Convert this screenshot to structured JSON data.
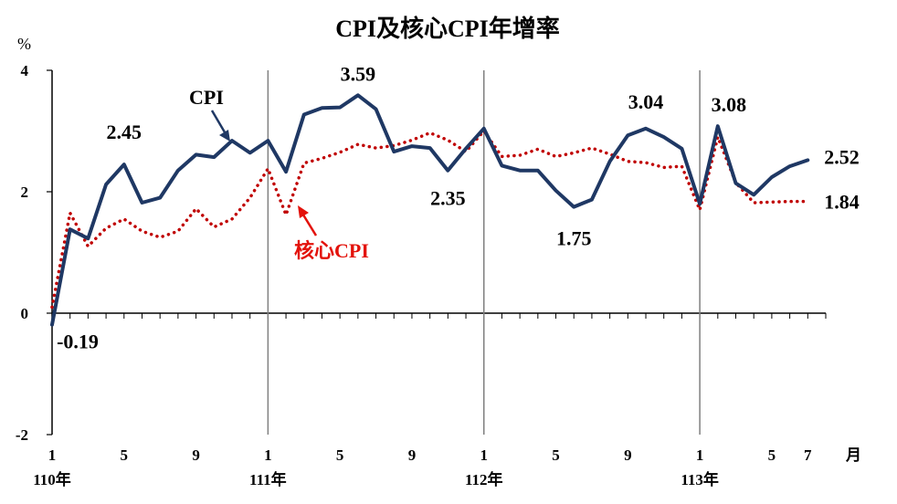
{
  "chart_data": {
    "type": "line",
    "title": "CPI及核心CPI年增率",
    "yunit": "%",
    "xunit": "月",
    "ylim": [
      -2,
      4
    ],
    "yticks": [
      "4",
      "2",
      "0",
      "-2"
    ],
    "month_ticks": [
      {
        "index": 0,
        "label": "1"
      },
      {
        "index": 4,
        "label": "5"
      },
      {
        "index": 8,
        "label": "9"
      },
      {
        "index": 12,
        "label": "1"
      },
      {
        "index": 16,
        "label": "5"
      },
      {
        "index": 20,
        "label": "9"
      },
      {
        "index": 24,
        "label": "1"
      },
      {
        "index": 28,
        "label": "5"
      },
      {
        "index": 32,
        "label": "9"
      },
      {
        "index": 36,
        "label": "1"
      },
      {
        "index": 40,
        "label": "5"
      },
      {
        "index": 42,
        "label": "7"
      }
    ],
    "year_labels": [
      {
        "index": 0,
        "label": "110年"
      },
      {
        "index": 12,
        "label": "111年"
      },
      {
        "index": 24,
        "label": "112年"
      },
      {
        "index": 36,
        "label": "113年"
      }
    ],
    "year_separators": [
      12,
      24,
      36
    ],
    "series": [
      {
        "name": "CPI",
        "color": "#1f3864",
        "style": "solid",
        "values": [
          -0.19,
          1.38,
          1.23,
          2.12,
          2.45,
          1.82,
          1.9,
          2.35,
          2.61,
          2.57,
          2.84,
          2.64,
          2.84,
          2.33,
          3.27,
          3.38,
          3.39,
          3.59,
          3.36,
          2.66,
          2.75,
          2.72,
          2.35,
          2.71,
          3.04,
          2.43,
          2.35,
          2.35,
          2.02,
          1.75,
          1.87,
          2.5,
          2.93,
          3.04,
          2.9,
          2.71,
          1.8,
          3.08,
          2.14,
          1.95,
          2.24,
          2.42,
          2.52
        ]
      },
      {
        "name": "核心CPI",
        "color": "#c00000",
        "style": "dotted",
        "values": [
          0.1,
          1.65,
          1.1,
          1.4,
          1.55,
          1.35,
          1.25,
          1.35,
          1.72,
          1.42,
          1.55,
          1.9,
          2.38,
          1.62,
          2.47,
          2.55,
          2.65,
          2.78,
          2.72,
          2.76,
          2.85,
          2.97,
          2.85,
          2.66,
          3.0,
          2.58,
          2.6,
          2.7,
          2.58,
          2.64,
          2.72,
          2.62,
          2.5,
          2.48,
          2.4,
          2.42,
          1.7,
          2.9,
          2.15,
          1.82,
          1.83,
          1.84,
          1.84
        ]
      }
    ],
    "annotations": [
      {
        "text": "-0.19",
        "index": 0,
        "value": -0.19,
        "color": "#000000"
      },
      {
        "text": "2.45",
        "index": 4,
        "value": 2.45,
        "color": "#000000"
      },
      {
        "text": "3.59",
        "index": 17,
        "value": 3.59,
        "color": "#000000"
      },
      {
        "text": "2.35",
        "index": 22,
        "value": 2.35,
        "color": "#000000"
      },
      {
        "text": "1.75",
        "index": 29,
        "value": 1.75,
        "color": "#000000"
      },
      {
        "text": "3.04",
        "index": 33,
        "value": 3.04,
        "color": "#000000"
      },
      {
        "text": "3.08",
        "index": 37,
        "value": 3.08,
        "color": "#000000"
      },
      {
        "text": "2.52",
        "index": 42,
        "value": 2.52,
        "color": "#000000"
      },
      {
        "text": "1.84",
        "index": 42,
        "value": 1.84,
        "color": "#e3120b"
      }
    ],
    "callouts": [
      {
        "text": "CPI",
        "color": "#000000",
        "arrow_color": "#1f3864"
      },
      {
        "text": "核心CPI",
        "color": "#e3120b",
        "arrow_color": "#e3120b"
      }
    ]
  }
}
